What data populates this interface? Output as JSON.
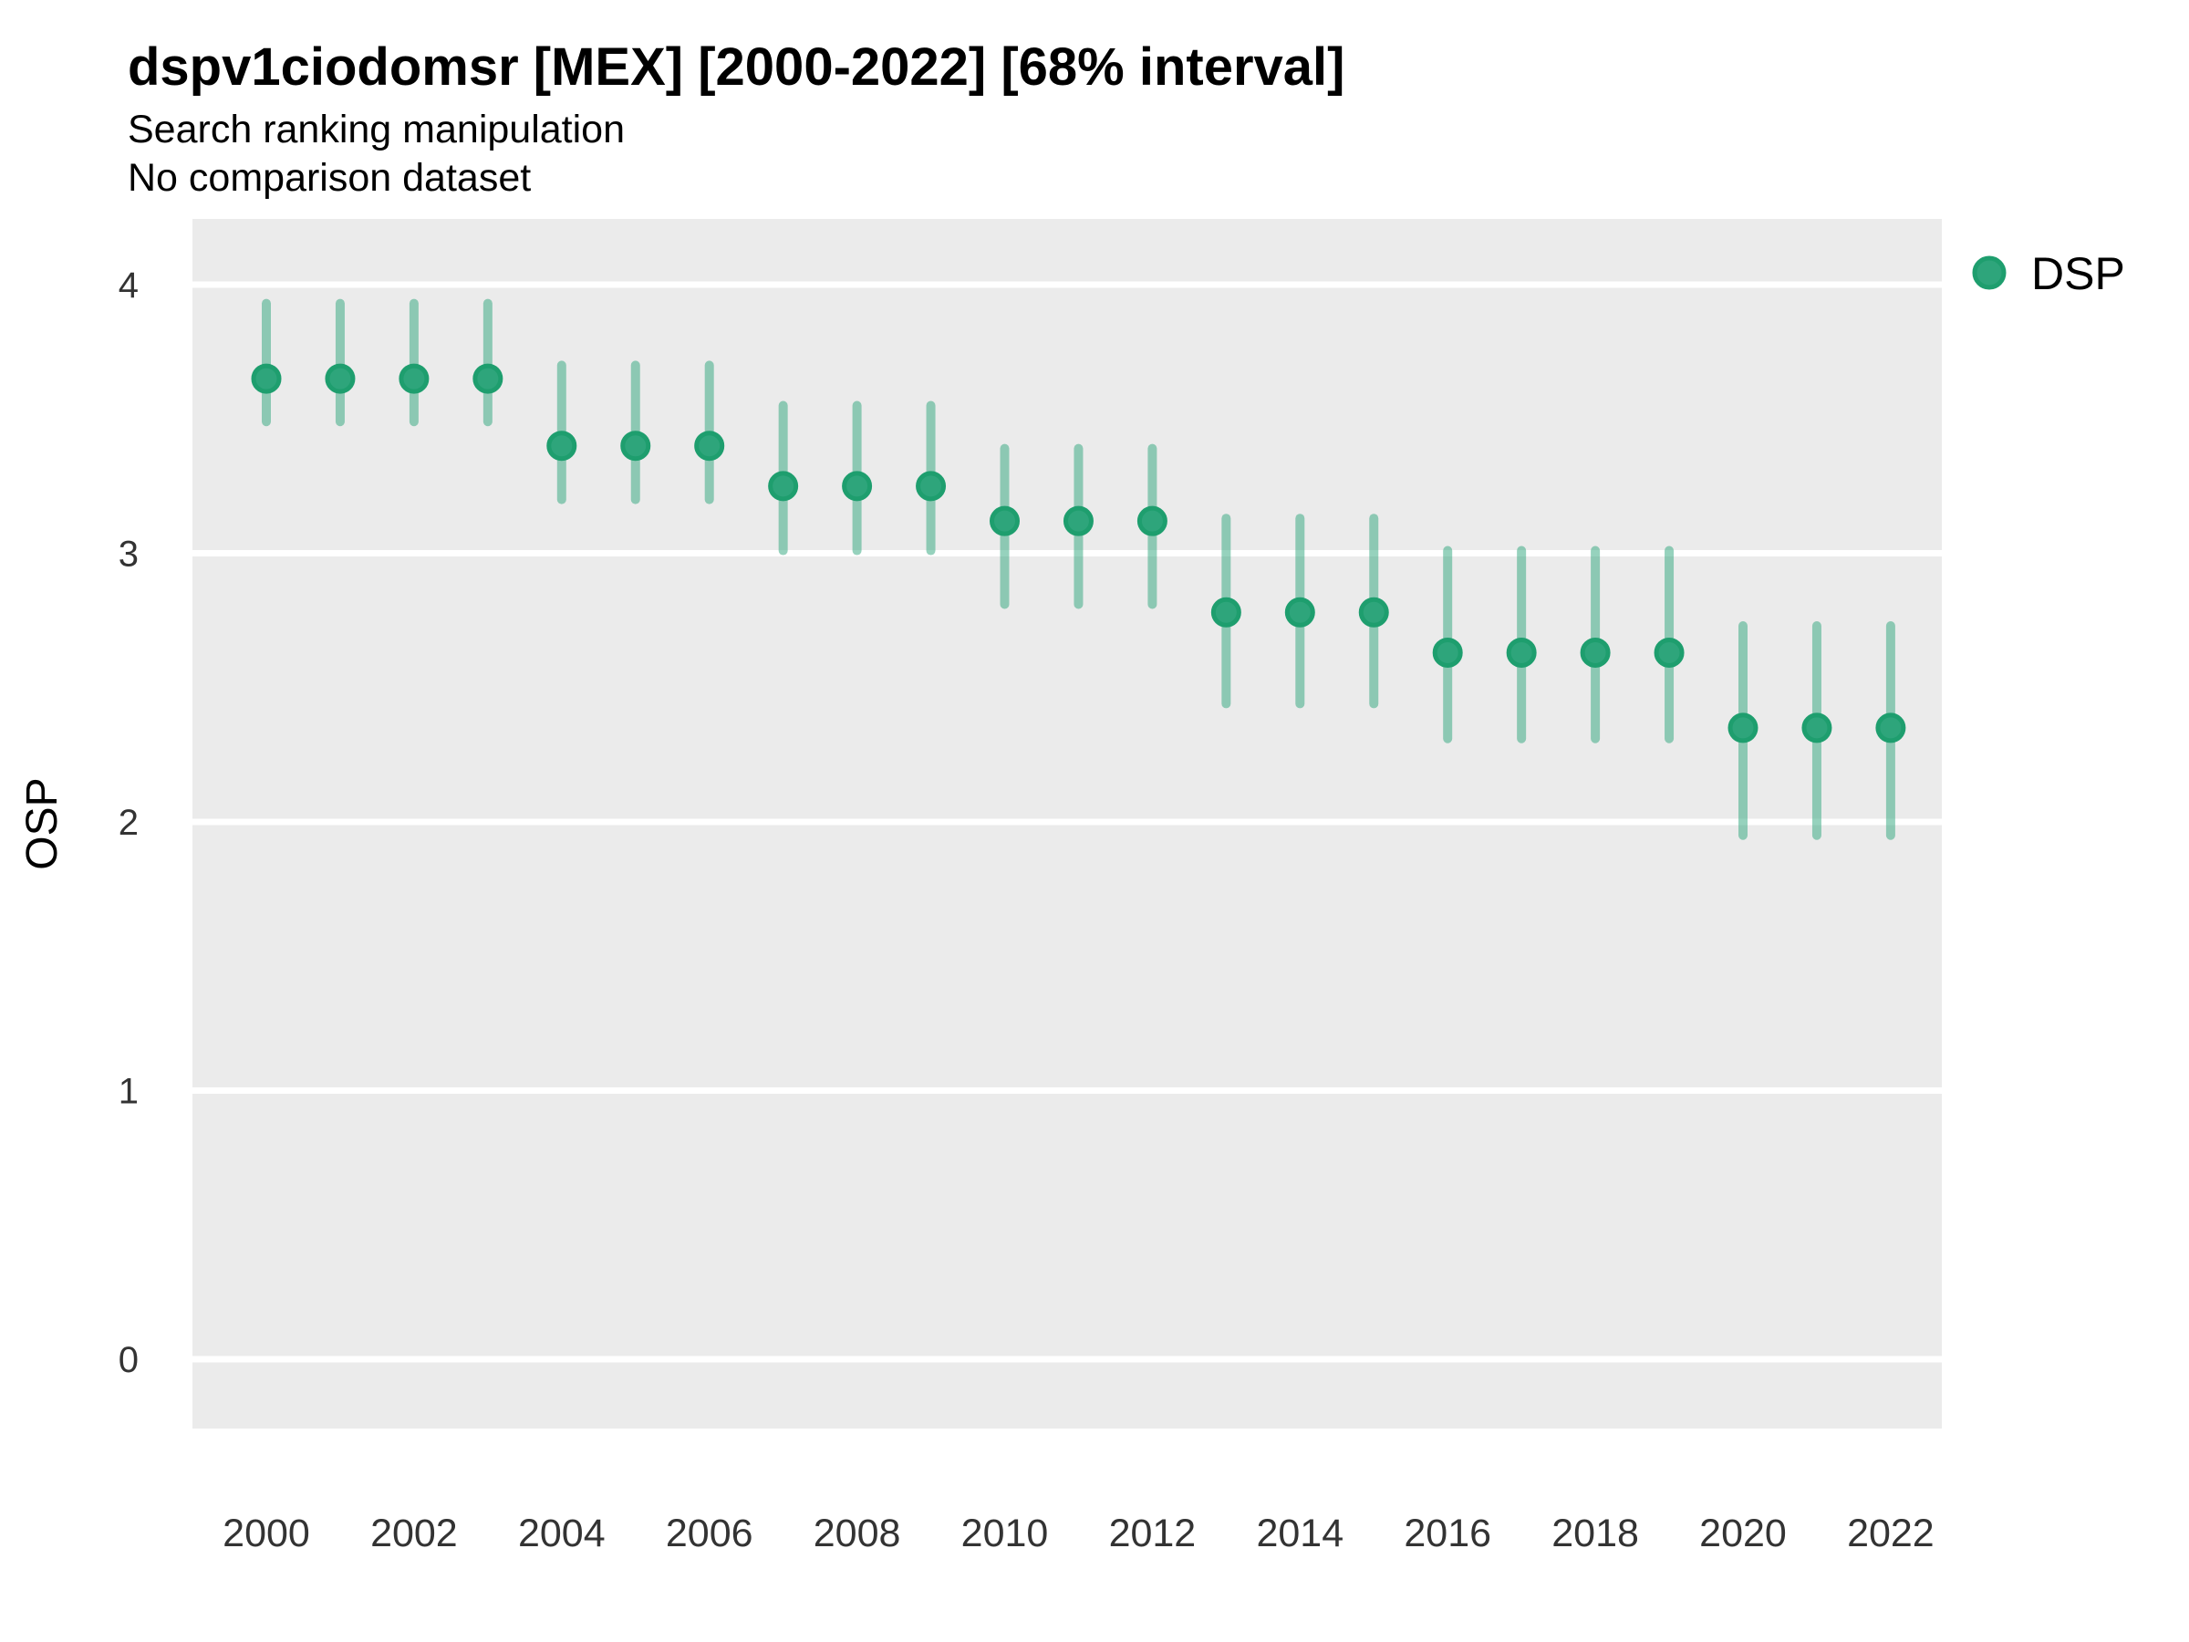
{
  "title": "dspv1ciodomsr [MEX] [2000-2022] [68% interval]",
  "subtitle_line1": "Search ranking manipulation",
  "subtitle_line2": "No comparison dataset",
  "y_axis": {
    "label": "OSP",
    "ticks": [
      4,
      3,
      2,
      1,
      0
    ]
  },
  "x_axis": {
    "ticks": [
      2000,
      2002,
      2004,
      2006,
      2008,
      2010,
      2012,
      2014,
      2016,
      2018,
      2020,
      2022
    ]
  },
  "legend": {
    "items": [
      {
        "label": "DSP",
        "marker": "circle-icon"
      }
    ]
  },
  "colors": {
    "panel_bg": "#ebebeb",
    "gridline": "#ffffff",
    "point_fill": "#2ea57b",
    "point_stroke": "#1e9e6e",
    "interval_line": "rgba(46,165,123,0.5)",
    "title_text": "#000000",
    "tick_text": "#333333"
  },
  "chart_data": {
    "type": "scatter",
    "title": "dspv1ciodomsr [MEX] [2000-2022] [68% interval]",
    "subtitle": [
      "Search ranking manipulation",
      "No comparison dataset"
    ],
    "xlabel": "",
    "ylabel": "OSP",
    "interval_level": "68%",
    "grid": "horizontal-major-only",
    "legend_position": "top-right",
    "ylim": [
      -0.26,
      4.25
    ],
    "xlim": [
      1999.0,
      2022.7
    ],
    "x": [
      2000,
      2001,
      2002,
      2003,
      2004,
      2005,
      2006,
      2007,
      2008,
      2009,
      2010,
      2011,
      2012,
      2013,
      2014,
      2015,
      2016,
      2017,
      2018,
      2019,
      2020,
      2021,
      2022
    ],
    "series": [
      {
        "name": "DSP",
        "values": [
          3.65,
          3.65,
          3.65,
          3.65,
          3.4,
          3.4,
          3.4,
          3.25,
          3.25,
          3.25,
          3.12,
          3.12,
          3.12,
          2.78,
          2.78,
          2.78,
          2.63,
          2.63,
          2.63,
          2.63,
          2.35,
          2.35,
          2.35
        ],
        "interval_low": [
          3.49,
          3.49,
          3.49,
          3.49,
          3.2,
          3.2,
          3.2,
          3.01,
          3.01,
          3.01,
          2.81,
          2.81,
          2.81,
          2.44,
          2.44,
          2.44,
          2.31,
          2.31,
          2.31,
          2.31,
          1.95,
          1.95,
          1.95
        ],
        "interval_high": [
          3.93,
          3.93,
          3.93,
          3.93,
          3.7,
          3.7,
          3.7,
          3.55,
          3.55,
          3.55,
          3.39,
          3.39,
          3.39,
          3.13,
          3.13,
          3.13,
          3.01,
          3.01,
          3.01,
          3.01,
          2.73,
          2.73,
          2.73
        ]
      }
    ]
  }
}
